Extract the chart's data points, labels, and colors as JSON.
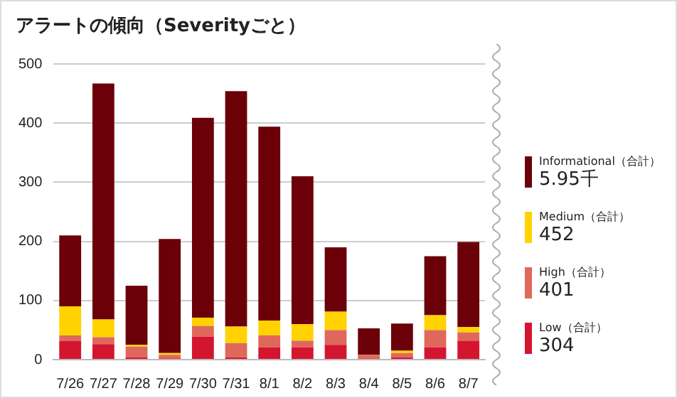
{
  "chart_data": {
    "type": "bar",
    "title": "アラートの傾向（Severityごと）",
    "categories": [
      "7/26",
      "7/27",
      "7/28",
      "7/29",
      "7/30",
      "7/31",
      "8/1",
      "8/2",
      "8/3",
      "8/4",
      "8/5",
      "8/6",
      "8/7"
    ],
    "stacked": true,
    "series": [
      {
        "name": "Low（合計）",
        "color": "#d4152f",
        "values": [
          32,
          26,
          4,
          2,
          39,
          4,
          21,
          21,
          25,
          2,
          4,
          21,
          32
        ]
      },
      {
        "name": "High（合計）",
        "color": "#e0685a",
        "values": [
          9,
          12,
          18,
          6,
          18,
          24,
          20,
          11,
          25,
          6,
          7,
          29,
          14
        ]
      },
      {
        "name": "Medium（合計）",
        "color": "#ffd200",
        "values": [
          49,
          30,
          3,
          3,
          14,
          28,
          25,
          28,
          31,
          0,
          4,
          25,
          9
        ]
      },
      {
        "name": "Informational（合計）",
        "color": "#6b0009",
        "values": [
          120,
          399,
          100,
          193,
          338,
          398,
          328,
          250,
          109,
          45,
          46,
          100,
          144
        ]
      }
    ],
    "annotations": [
      "304",
      "401",
      "452",
      "5.95千"
    ],
    "ylim": [
      0,
      500
    ],
    "yticks": [
      0,
      100,
      200,
      300,
      400,
      500
    ],
    "grid": "y",
    "legend": "right"
  }
}
